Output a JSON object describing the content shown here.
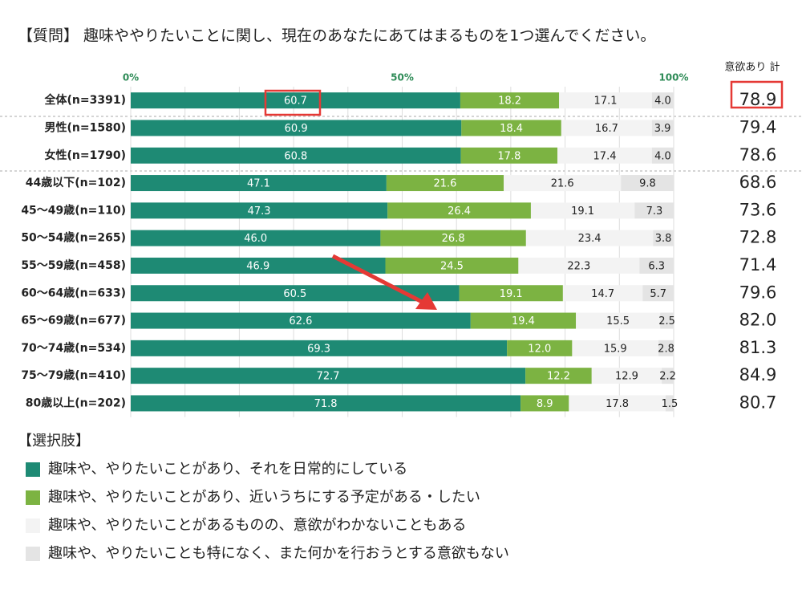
{
  "chart_data": {
    "type": "stacked-bar-horizontal",
    "title": "【質問】 趣味ややりたいことに関し、現在のあなたにあてはまるものを1つ選んでください。",
    "legend_title": "【選択肢】",
    "categories": [
      "全体(n=3391)",
      "男性(n=1580)",
      "女性(n=1790)",
      "44歳以下(n=102)",
      "45～49歳(n=110)",
      "50～54歳(n=265)",
      "55～59歳(n=458)",
      "60～64歳(n=633)",
      "65～69歳(n=677)",
      "70～74歳(n=534)",
      "75～79歳(n=410)",
      "80歳以上(n=202)"
    ],
    "series": [
      {
        "name": "趣味や、やりたいことがあり、それを日常的にしている",
        "color": "#1e8a74",
        "values": [
          60.7,
          60.9,
          60.8,
          47.1,
          47.3,
          46.0,
          46.9,
          60.5,
          62.6,
          69.3,
          72.7,
          71.8
        ],
        "value_labels": [
          "60.7",
          "60.9",
          "60.8",
          "47.1",
          "47.3",
          "46.0",
          "46.9",
          "60.5",
          "62.6",
          "69.3",
          "72.7",
          "71.8"
        ]
      },
      {
        "name": "趣味や、やりたいことがあり、近いうちにする予定がある・したい",
        "color": "#7cb342",
        "values": [
          18.2,
          18.4,
          17.8,
          21.6,
          26.4,
          26.8,
          24.5,
          19.1,
          19.4,
          12.0,
          12.2,
          8.9
        ],
        "value_labels": [
          "18.2",
          "18.4",
          "17.8",
          "21.6",
          "26.4",
          "26.8",
          "24.5",
          "19.1",
          "19.4",
          "12.0",
          "12.2",
          "8.9"
        ]
      },
      {
        "name": "趣味や、やりたいことがあるものの、意欲がわかないこともある",
        "color": "#f3f3f3",
        "values": [
          17.1,
          16.7,
          17.4,
          21.6,
          19.1,
          23.4,
          22.3,
          14.7,
          15.5,
          15.9,
          12.9,
          17.8
        ],
        "value_labels": [
          "17.1",
          "16.7",
          "17.4",
          "21.6",
          "19.1",
          "23.4",
          "22.3",
          "14.7",
          "15.5",
          "15.9",
          "12.9",
          "17.8"
        ]
      },
      {
        "name": "趣味や、やりたいことも特になく、また何かを行おうとする意欲もない",
        "color": "#e4e4e4",
        "values": [
          4.0,
          3.9,
          4.0,
          9.8,
          7.3,
          3.8,
          6.3,
          5.7,
          2.5,
          2.8,
          2.2,
          1.5
        ],
        "value_labels": [
          "4.0",
          "3.9",
          "4.0",
          "9.8",
          "7.3",
          "3.8",
          "6.3",
          "5.7",
          "2.5",
          "2.8",
          "2.2",
          "1.5"
        ]
      }
    ],
    "totals": {
      "name": "意欲あり 計",
      "values": [
        78.9,
        79.4,
        78.6,
        68.6,
        73.6,
        72.8,
        71.4,
        79.6,
        82.0,
        81.3,
        84.9,
        80.7
      ],
      "value_labels": [
        "78.9",
        "79.4",
        "78.6",
        "68.6",
        "73.6",
        "72.8",
        "71.4",
        "79.6",
        "82.0",
        "81.3",
        "84.9",
        "80.7"
      ]
    },
    "xlim": [
      0,
      100
    ],
    "xticks": [
      {
        "value": 0,
        "label": "0%"
      },
      {
        "value": 50,
        "label": "50%"
      },
      {
        "value": 100,
        "label": "100%"
      }
    ],
    "grid_lines": [
      0,
      10,
      20,
      30,
      40,
      50,
      60,
      70,
      80,
      90,
      100
    ]
  }
}
